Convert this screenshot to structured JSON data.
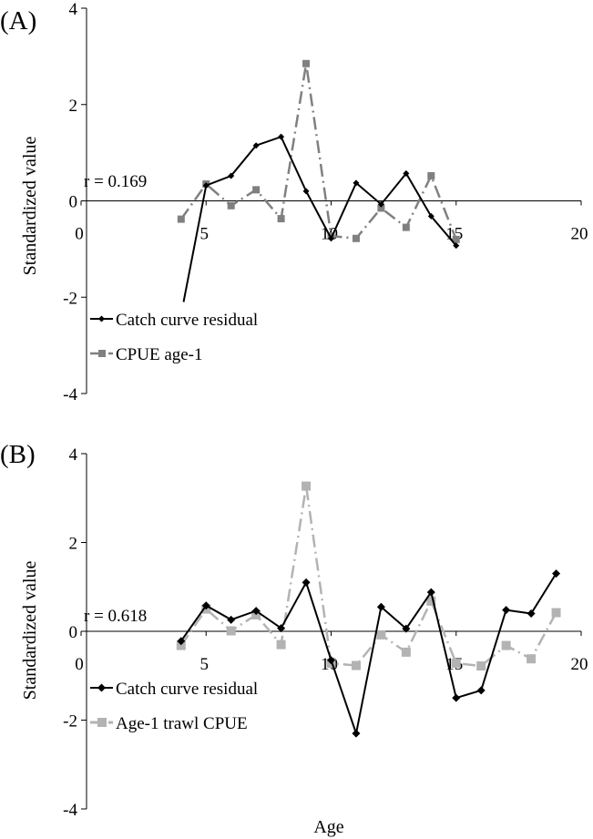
{
  "chart_data": [
    {
      "type": "line",
      "panel_label": "(A)",
      "xlabel": "",
      "ylabel": "Standardized value",
      "annotation": "r = 0.169",
      "xlim": [
        0,
        20
      ],
      "ylim": [
        -4,
        4
      ],
      "xticks": [
        "0",
        "5",
        "10",
        "15",
        "20"
      ],
      "yticks": [
        "-4",
        "-2",
        "0",
        "2",
        "4"
      ],
      "legend_position": "lower-left",
      "series": [
        {
          "name": "Catch curve residual",
          "color": "#000000",
          "style": "solid",
          "marker": "diamond",
          "lead_in": [
            4.1,
            -2.1
          ],
          "x": [
            5,
            6,
            7,
            8,
            9,
            10,
            11,
            12,
            13,
            14,
            15
          ],
          "values": [
            0.32,
            0.52,
            1.15,
            1.33,
            0.2,
            -0.78,
            0.37,
            -0.07,
            0.57,
            -0.32,
            -0.93
          ]
        },
        {
          "name": "CPUE age-1",
          "color": "#808080",
          "style": "dashdot",
          "marker": "square",
          "x": [
            4,
            5,
            6,
            7,
            8,
            9,
            10,
            11,
            12,
            13,
            14,
            15
          ],
          "values": [
            -0.38,
            0.35,
            -0.1,
            0.23,
            -0.37,
            2.85,
            -0.73,
            -0.78,
            -0.15,
            -0.55,
            0.52,
            -0.8
          ]
        }
      ]
    },
    {
      "type": "line",
      "panel_label": "(B)",
      "xlabel": "Age",
      "ylabel": "Standardized value",
      "annotation": "r = 0.618",
      "xlim": [
        0,
        20
      ],
      "ylim": [
        -4,
        4
      ],
      "xticks": [
        "0",
        "5",
        "10",
        "15",
        "20"
      ],
      "yticks": [
        "-4",
        "-2",
        "0",
        "2",
        "4"
      ],
      "legend_position": "lower-left",
      "series": [
        {
          "name": "Catch curve residual",
          "color": "#000000",
          "style": "solid",
          "marker": "diamond",
          "x": [
            4,
            5,
            6,
            7,
            8,
            9,
            10,
            11,
            12,
            13,
            14,
            15,
            16,
            17,
            18,
            19
          ],
          "values": [
            -0.22,
            0.58,
            0.26,
            0.46,
            0.07,
            1.1,
            -0.65,
            -2.3,
            0.55,
            0.06,
            0.88,
            -1.5,
            -1.33,
            0.48,
            0.4,
            1.3
          ]
        },
        {
          "name": "Age-1 trawl CPUE",
          "color": "#b3b3b3",
          "style": "dashdot",
          "marker": "square",
          "x": [
            4,
            5,
            6,
            7,
            8,
            9,
            10,
            11,
            12,
            13,
            14,
            15,
            16,
            17,
            18,
            19
          ],
          "values": [
            -0.32,
            0.5,
            0.01,
            0.37,
            -0.3,
            3.27,
            -0.72,
            -0.77,
            -0.08,
            -0.47,
            0.68,
            -0.72,
            -0.78,
            -0.32,
            -0.62,
            0.42
          ]
        }
      ]
    }
  ]
}
